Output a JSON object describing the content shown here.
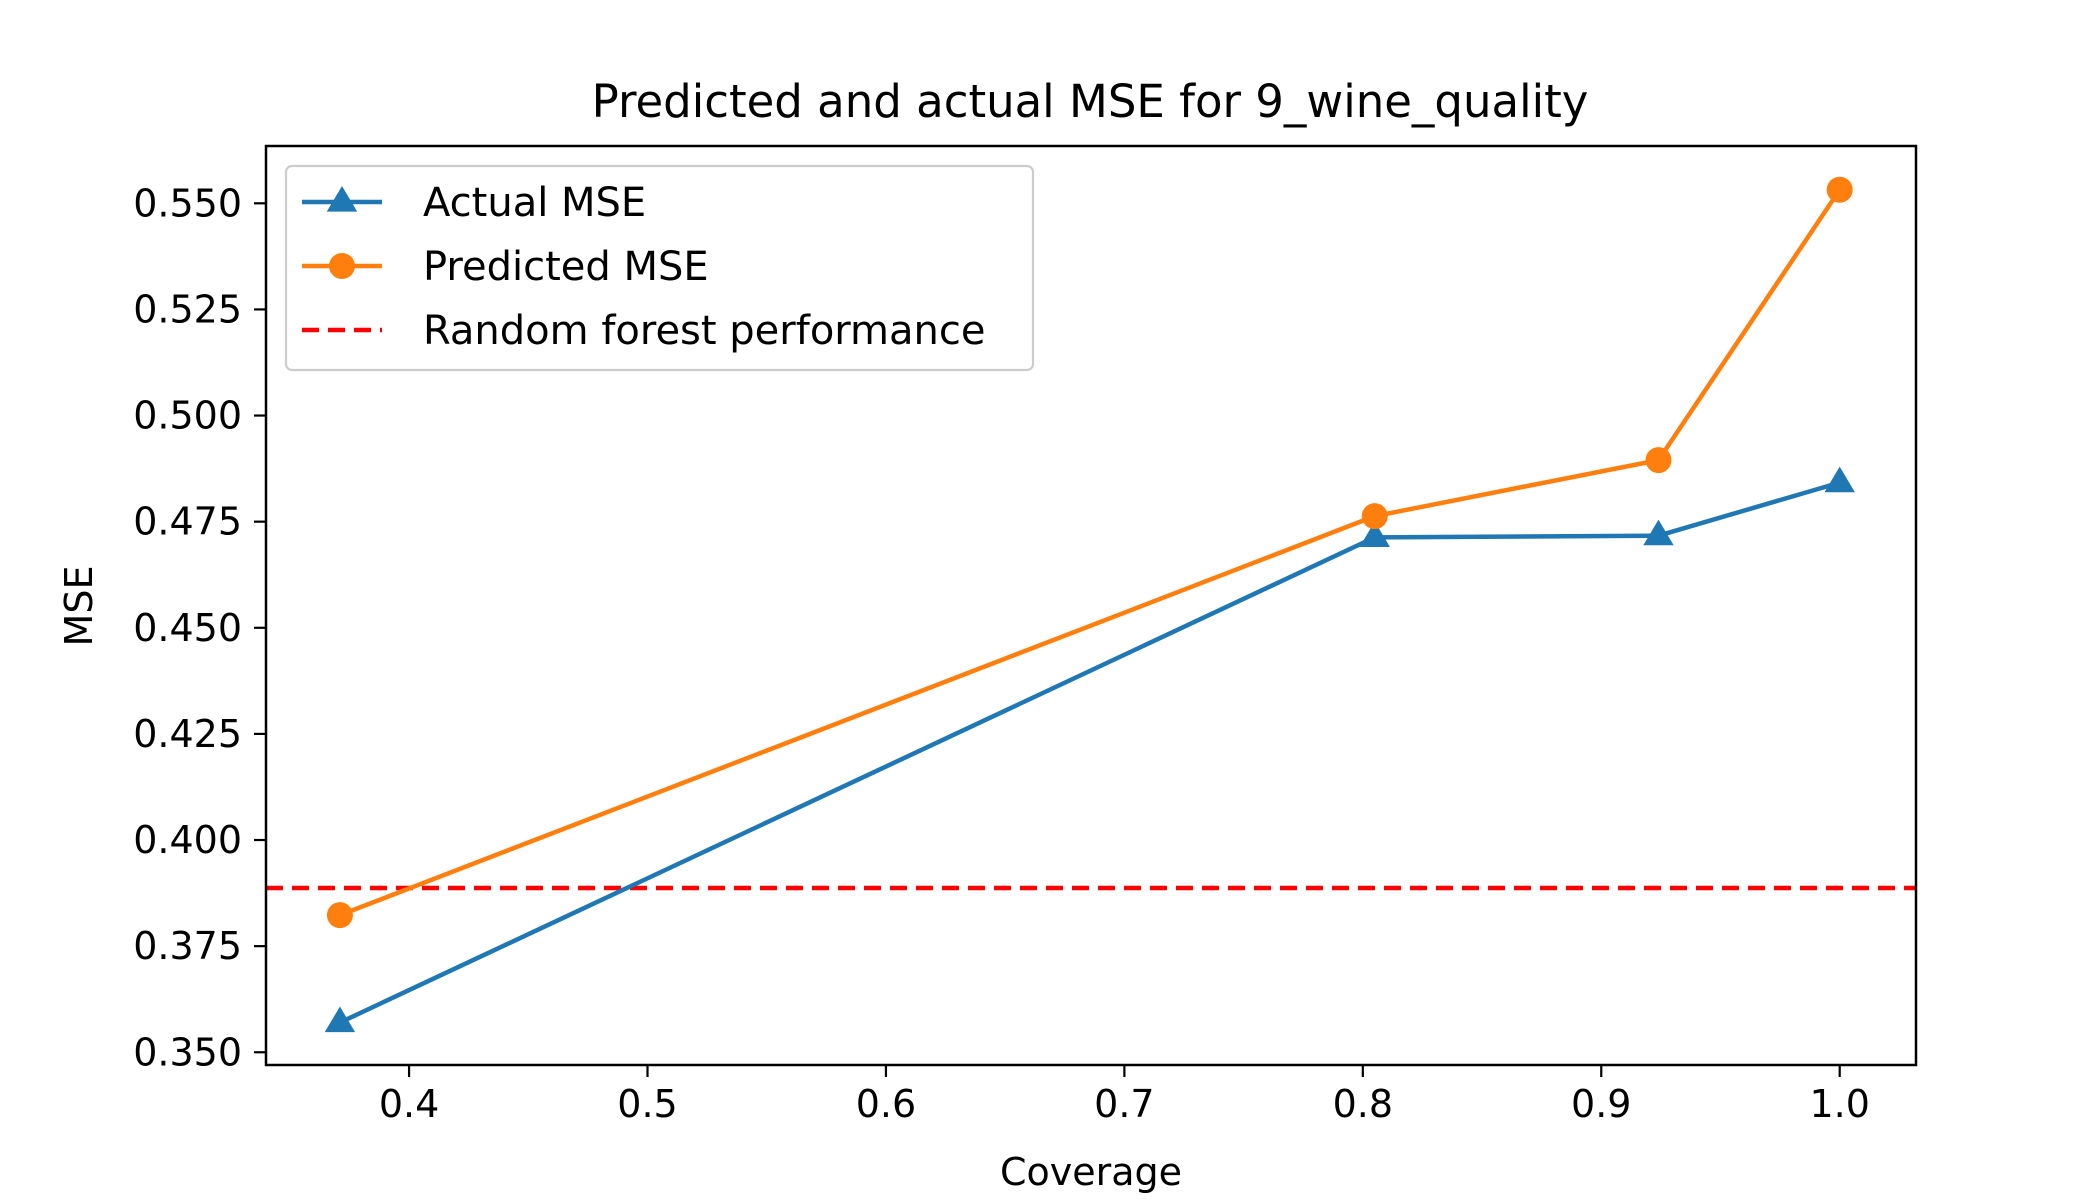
{
  "chart_data": {
    "type": "line",
    "title": "Predicted and actual MSE for 9_wine_quality",
    "xlabel": "Coverage",
    "ylabel": "MSE",
    "xlim": [
      0.34,
      1.032
    ],
    "ylim": [
      0.347,
      0.5635
    ],
    "xticks": [
      0.4,
      0.5,
      0.6,
      0.7,
      0.8,
      0.9,
      1.0
    ],
    "xtick_labels": [
      "0.4",
      "0.5",
      "0.6",
      "0.7",
      "0.8",
      "0.9",
      "1.0"
    ],
    "yticks": [
      0.35,
      0.375,
      0.4,
      0.425,
      0.45,
      0.475,
      0.5,
      0.525,
      0.55
    ],
    "ytick_labels": [
      "0.350",
      "0.375",
      "0.400",
      "0.425",
      "0.450",
      "0.475",
      "0.500",
      "0.525",
      "0.550"
    ],
    "grid": false,
    "legend_position": "top-left",
    "series": [
      {
        "name": "Actual MSE",
        "color": "#1f77b4",
        "marker": "triangle",
        "x": [
          0.371,
          0.805,
          0.924,
          1.0
        ],
        "y": [
          0.357,
          0.4713,
          0.4717,
          0.4842
        ]
      },
      {
        "name": "Predicted MSE",
        "color": "#ff7f0e",
        "marker": "circle",
        "x": [
          0.371,
          0.805,
          0.924,
          1.0
        ],
        "y": [
          0.3823,
          0.4763,
          0.4895,
          0.5532
        ]
      }
    ],
    "reference_lines": [
      {
        "name": "Random forest performance",
        "color": "#ff0000",
        "style": "dashed",
        "y": 0.3887
      }
    ]
  }
}
